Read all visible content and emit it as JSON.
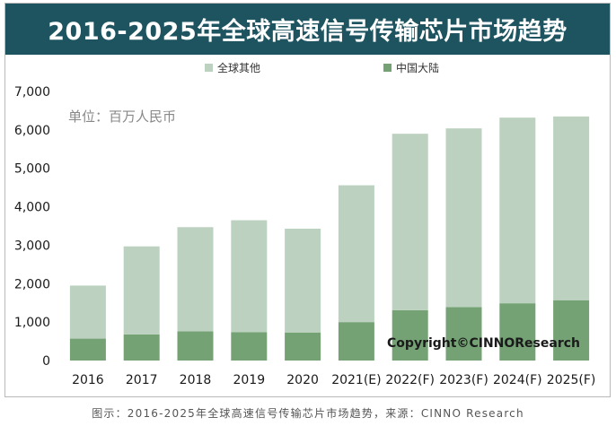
{
  "title": "2016-2025年全球高速信号传输芯片市场趋势",
  "caption": "图示：2016-2025年全球高速信号传输芯片市场趋势，来源：CINNO Research",
  "colors": {
    "title_bg": "#1d5460",
    "rest_of_world": "#bcd1bf",
    "china": "#74a275"
  },
  "chart_data": {
    "type": "bar",
    "stacked": true,
    "unit_label": "单位：百万人民币",
    "watermark": "Copyright©CINNOResearch",
    "categories": [
      "2016",
      "2017",
      "2018",
      "2019",
      "2020",
      "2021(E)",
      "2022(F)",
      "2023(F)",
      "2024(F)",
      "2025(F)"
    ],
    "series": [
      {
        "name": "中国大陆",
        "color": "#74a275",
        "values": [
          570,
          680,
          760,
          740,
          730,
          1000,
          1310,
          1390,
          1490,
          1570
        ]
      },
      {
        "name": "全球其他",
        "color": "#bcd1bf",
        "values": [
          1380,
          2290,
          2710,
          2910,
          2700,
          3560,
          4590,
          4650,
          4830,
          4780
        ]
      }
    ],
    "ylim": [
      0,
      7000
    ],
    "yticks": [
      "0",
      "1,000",
      "2,000",
      "3,000",
      "4,000",
      "5,000",
      "6,000",
      "7,000"
    ],
    "legend_position": "top"
  }
}
